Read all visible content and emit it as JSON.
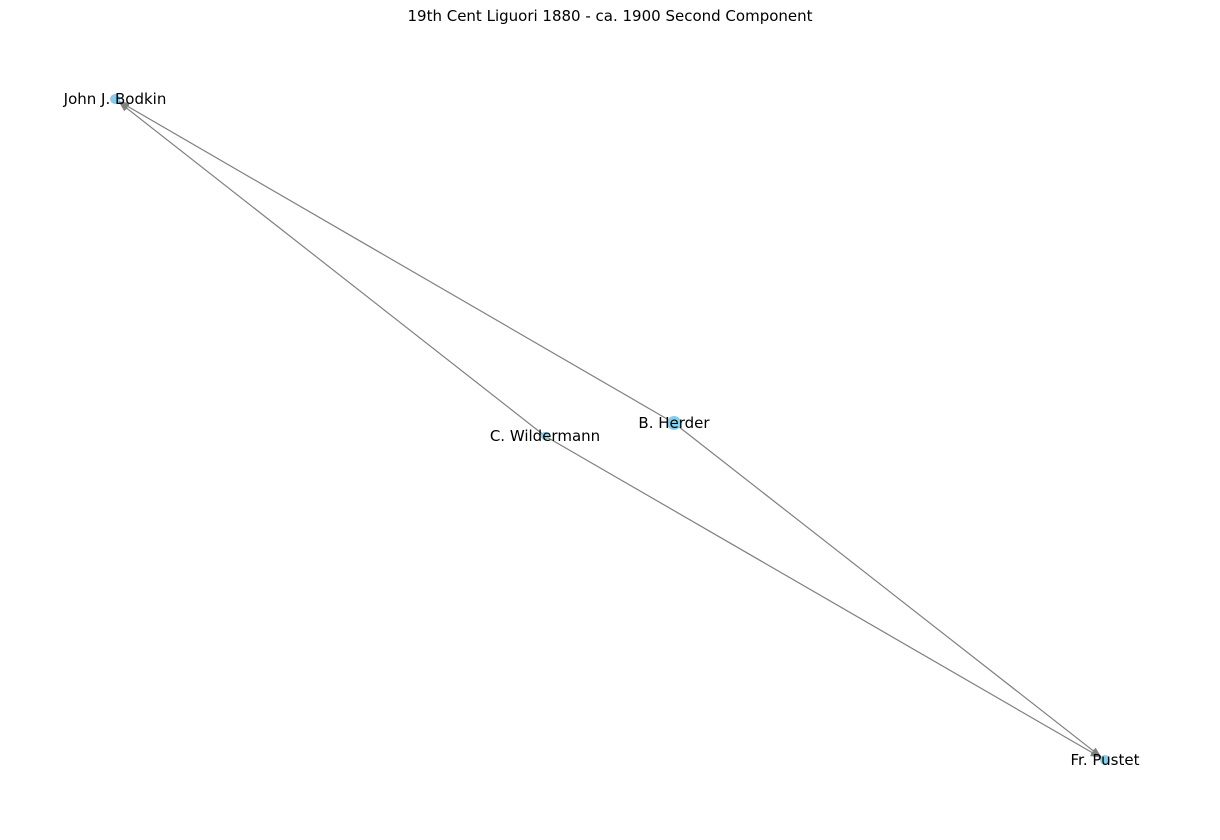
{
  "title": "19th Cent Liguori 1880 - ca. 1900 Second Component",
  "colors": {
    "node": "#87ceeb",
    "edge": "#808080",
    "label": "#000000"
  },
  "nodes": [
    {
      "id": "bodkin",
      "label": "John J. Bodkin"
    },
    {
      "id": "herder",
      "label": "B. Herder"
    },
    {
      "id": "wildermann",
      "label": "C. Wildermann"
    },
    {
      "id": "pustet",
      "label": "Fr. Pustet"
    }
  ],
  "edges": [
    {
      "source": "herder",
      "target": "bodkin"
    },
    {
      "source": "wildermann",
      "target": "bodkin"
    },
    {
      "source": "herder",
      "target": "pustet"
    },
    {
      "source": "wildermann",
      "target": "pustet"
    }
  ]
}
